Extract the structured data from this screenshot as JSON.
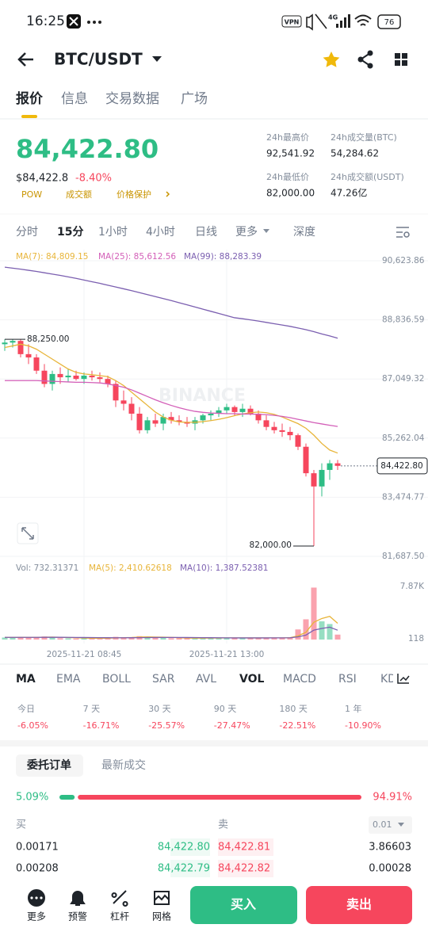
{
  "status": {
    "time": "16:25",
    "vpn": "VPN",
    "network": "4G",
    "battery": "76"
  },
  "header": {
    "pair": "BTC/USDT"
  },
  "tabs": [
    "报价",
    "信息",
    "交易数据",
    "广场"
  ],
  "price": {
    "last": "84,422.80",
    "fiat": "$84,422.8",
    "change": "-8.40%",
    "tags": [
      "POW",
      "成交额",
      "价格保护"
    ]
  },
  "stats": [
    {
      "label": "24h最高价",
      "value": "92,541.92"
    },
    {
      "label": "24h成交量(BTC)",
      "value": "54,284.62"
    },
    {
      "label": "24h最低价",
      "value": "82,000.00"
    },
    {
      "label": "24h成交额(USDT)",
      "value": "47.26亿"
    }
  ],
  "intervals": [
    "分时",
    "15分",
    "1小时",
    "4小时",
    "日线",
    "更多",
    "深度"
  ],
  "chart_data": [
    {
      "type": "candlestick",
      "categories": [
        null,
        null,
        null,
        null,
        null,
        null,
        null,
        null,
        null,
        null,
        "2025-11-21 08:45",
        null,
        null,
        null,
        null,
        null,
        null,
        null,
        null,
        null,
        null,
        null,
        null,
        null,
        null,
        null,
        null,
        null,
        "2025-11-21 13:00",
        null,
        null,
        null,
        null,
        null,
        null,
        null,
        null,
        null,
        null,
        null,
        null,
        null,
        null
      ],
      "open": [
        88100,
        88150,
        88200,
        87800,
        87700,
        87300,
        86900,
        87200,
        87100,
        87150,
        87050,
        87150,
        87100,
        87050,
        86900,
        86400,
        86300,
        86000,
        85500,
        85800,
        85700,
        85900,
        85800,
        85750,
        85700,
        85800,
        85950,
        86000,
        86100,
        86200,
        86050,
        86150,
        86000,
        85800,
        85600,
        85500,
        85450,
        85350,
        85000,
        84200,
        83800,
        84300,
        84500
      ],
      "high": [
        88250,
        88250,
        88250,
        88100,
        87800,
        87500,
        87300,
        87400,
        87350,
        87300,
        87250,
        87300,
        87250,
        87150,
        87000,
        86700,
        86500,
        86200,
        85900,
        86000,
        86000,
        86050,
        85950,
        85900,
        85900,
        86000,
        86100,
        86200,
        86300,
        86250,
        86300,
        86250,
        86100,
        85950,
        85750,
        85700,
        85600,
        85400,
        85100,
        84300,
        84500,
        84600,
        84600
      ],
      "low": [
        87900,
        88000,
        87700,
        87500,
        87200,
        86800,
        86700,
        86900,
        86950,
        87000,
        86900,
        87000,
        86950,
        86800,
        86200,
        86100,
        85800,
        85400,
        85400,
        85600,
        85500,
        85700,
        85650,
        85600,
        85500,
        85700,
        85800,
        85900,
        86000,
        85950,
        85900,
        85950,
        85700,
        85500,
        85400,
        85300,
        85200,
        84900,
        84100,
        82000,
        83500,
        84000,
        84300
      ],
      "close": [
        88150,
        88200,
        87800,
        87700,
        87300,
        86900,
        87200,
        87100,
        87150,
        87050,
        87150,
        87100,
        87050,
        86900,
        86400,
        86300,
        86000,
        85500,
        85800,
        85700,
        85900,
        85800,
        85750,
        85700,
        85800,
        85950,
        86000,
        86100,
        86200,
        86050,
        86150,
        86000,
        85800,
        85600,
        85500,
        85450,
        85350,
        85000,
        84200,
        83800,
        84300,
        84500,
        84422.8
      ],
      "up_color": "#2ebd85",
      "down_color": "#f6465d",
      "series": [
        {
          "name": "MA(7): 84,809.15",
          "color": "#e8b53a",
          "values": [
            88000,
            88050,
            88100,
            88050,
            87950,
            87800,
            87650,
            87500,
            87350,
            87250,
            87200,
            87180,
            87150,
            87120,
            87000,
            86850,
            86650,
            86450,
            86250,
            86050,
            85900,
            85800,
            85750,
            85740,
            85740,
            85760,
            85790,
            85830,
            85880,
            85940,
            85990,
            86030,
            86050,
            86030,
            85980,
            85900,
            85800,
            85700,
            85560,
            85350,
            85100,
            84900,
            84809.15
          ]
        },
        {
          "name": "MA(25): 85,612.56",
          "color": "#d35fb8",
          "values": [
            87000,
            87000,
            87000,
            87000,
            87000,
            86990,
            86980,
            86970,
            86960,
            86950,
            86950,
            86940,
            86930,
            86900,
            86850,
            86800,
            86720,
            86620,
            86520,
            86420,
            86330,
            86250,
            86180,
            86120,
            86070,
            86040,
            86020,
            86010,
            86000,
            86000,
            85990,
            85990,
            85980,
            85970,
            85950,
            85920,
            85880,
            85830,
            85780,
            85730,
            85690,
            85650,
            85612.56
          ]
        },
        {
          "name": "MA(99): 88,283.39",
          "color": "#7b5fb0",
          "values": [
            90430,
            90400,
            90370,
            90335,
            90300,
            90260,
            90220,
            90180,
            90135,
            90090,
            90040,
            89990,
            89940,
            89885,
            89830,
            89775,
            89720,
            89660,
            89600,
            89540,
            89480,
            89420,
            89355,
            89290,
            89225,
            89160,
            89095,
            89030,
            88965,
            88900,
            88870,
            88835,
            88800,
            88760,
            88720,
            88680,
            88640,
            88590,
            88540,
            88480,
            88410,
            88350,
            88283.39
          ]
        }
      ],
      "ylim": [
        81687.5,
        90623.86
      ],
      "yticks": [
        {
          "value": 90623.86,
          "label": "90,623.86"
        },
        {
          "value": 88836.59,
          "label": "88,836.59"
        },
        {
          "value": 87049.32,
          "label": "87,049.32"
        },
        {
          "value": 85262.04,
          "label": "85,262.04"
        },
        {
          "value": 83474.77,
          "label": "83,474.77"
        },
        {
          "value": 81687.5,
          "label": "81,687.50"
        }
      ],
      "grid": true,
      "annotations": {
        "high": {
          "value": 88250,
          "label": "88,250.00"
        },
        "low": {
          "value": 82000,
          "label": "82,000.00"
        },
        "last": {
          "value": 84422.8,
          "label": "84,422.80"
        }
      }
    },
    {
      "type": "bar",
      "label": "Vol: 732.31371",
      "values": [
        300,
        250,
        400,
        350,
        300,
        450,
        350,
        200,
        180,
        150,
        220,
        200,
        180,
        250,
        400,
        350,
        300,
        500,
        380,
        300,
        250,
        200,
        220,
        180,
        200,
        250,
        230,
        260,
        300,
        220,
        250,
        200,
        230,
        280,
        300,
        260,
        350,
        1500,
        3000,
        7700,
        2700,
        2300,
        732.31371
      ],
      "series": [
        {
          "name": "MA(5): 2,410.62618",
          "color": "#e8b53a",
          "values": [
            320,
            310,
            330,
            320,
            320,
            350,
            370,
            330,
            290,
            270,
            220,
            200,
            190,
            200,
            250,
            280,
            300,
            360,
            390,
            370,
            350,
            320,
            270,
            230,
            210,
            210,
            220,
            230,
            250,
            250,
            250,
            240,
            240,
            250,
            250,
            250,
            280,
            540,
            1080,
            2560,
            3120,
            3440,
            2410.62618
          ]
        },
        {
          "name": "MA(10): 1,387.52381",
          "color": "#7b5fb0",
          "values": [
            320,
            320,
            320,
            320,
            320,
            330,
            330,
            330,
            320,
            310,
            300,
            290,
            280,
            270,
            260,
            260,
            270,
            280,
            290,
            300,
            310,
            310,
            310,
            300,
            290,
            280,
            270,
            260,
            250,
            240,
            240,
            240,
            240,
            240,
            250,
            250,
            260,
            400,
            660,
            1400,
            1640,
            1830,
            1387.52381
          ]
        }
      ],
      "ylim": [
        0,
        7870
      ],
      "yticks": [
        {
          "value": 7870,
          "label": "7.87K"
        },
        118
      ]
    }
  ],
  "indicators": [
    "MA",
    "EMA",
    "BOLL",
    "SAR",
    "AVL",
    "VOL",
    "MACD",
    "RSI",
    "KDJ"
  ],
  "performance": [
    {
      "period": "今日",
      "change": "-6.05%"
    },
    {
      "period": "7 天",
      "change": "-16.71%"
    },
    {
      "period": "30 天",
      "change": "-25.57%"
    },
    {
      "period": "90 天",
      "change": "-27.47%"
    },
    {
      "period": "180 天",
      "change": "-22.51%"
    },
    {
      "period": "1 年",
      "change": "-10.90%"
    }
  ],
  "orders": {
    "tabs": [
      "委托订单",
      "最新成交"
    ],
    "buy_ratio": {
      "value": 5.09,
      "label": "5.09%"
    },
    "sell_ratio": {
      "value": 94.91,
      "label": "94.91%"
    },
    "buy_label": "买",
    "sell_label": "卖",
    "precision": "0.01",
    "rows": [
      [
        "0.00171",
        "84,422.80",
        "84,422.81",
        "3.86603"
      ],
      [
        "0.00208",
        "84,422.79",
        "84,422.82",
        "0.00028"
      ]
    ]
  },
  "toolbar": {
    "tools": [
      "更多",
      "预警",
      "杠杆",
      "网格"
    ],
    "buy": "买入",
    "sell": "卖出"
  }
}
